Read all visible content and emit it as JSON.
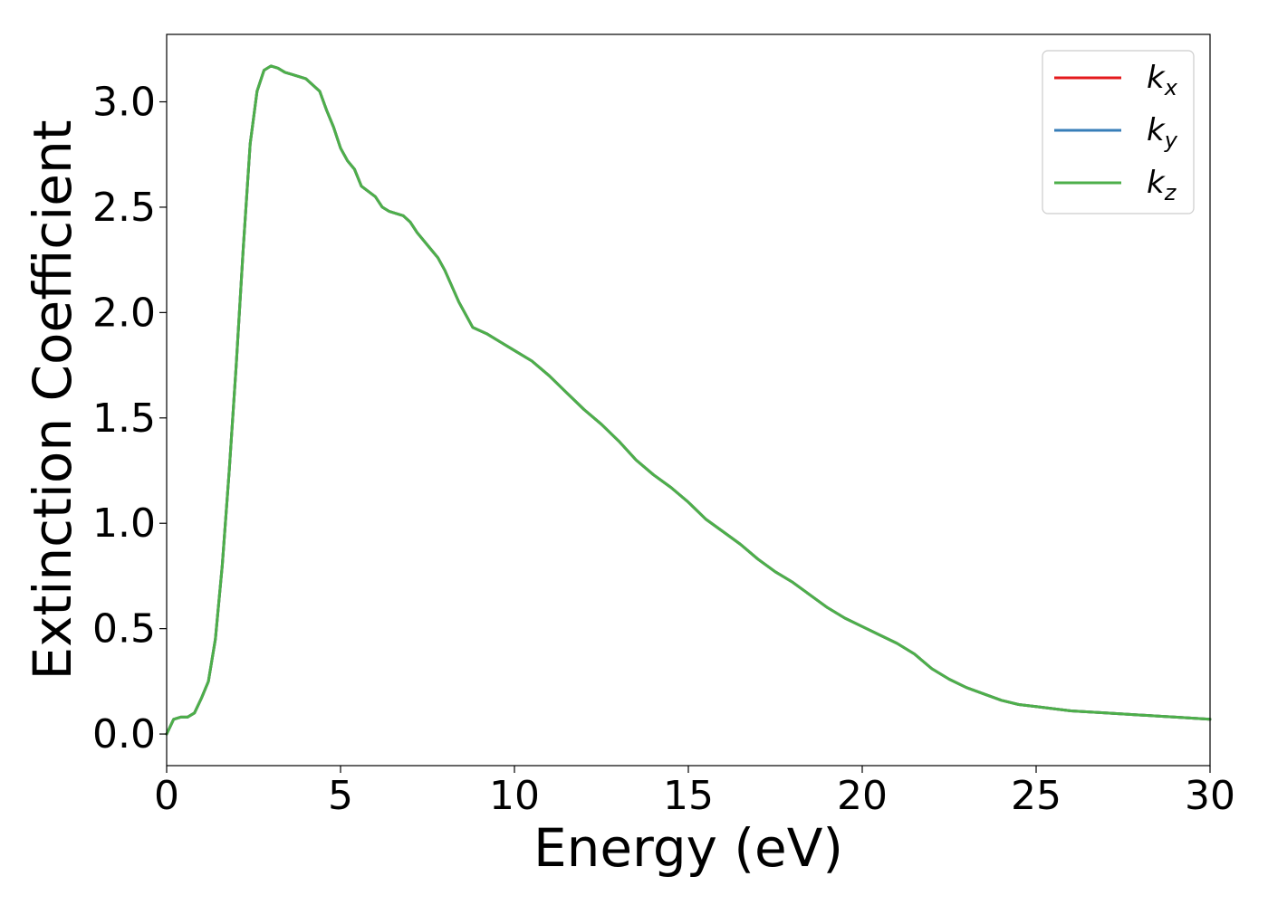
{
  "chart_data": {
    "type": "line",
    "title": "",
    "xlabel": "Energy (eV)",
    "ylabel": "Extinction Coefficient",
    "xlim": [
      0,
      30
    ],
    "ylim": [
      -0.15,
      3.32
    ],
    "xticks": [
      0,
      5,
      10,
      15,
      20,
      25,
      30
    ],
    "xtick_labels": [
      "0",
      "5",
      "10",
      "15",
      "20",
      "25",
      "30"
    ],
    "yticks": [
      0.0,
      0.5,
      1.0,
      1.5,
      2.0,
      2.5,
      3.0
    ],
    "ytick_labels": [
      "0.0",
      "0.5",
      "1.0",
      "1.5",
      "2.0",
      "2.5",
      "3.0"
    ],
    "grid": false,
    "legend_position": "top-right",
    "x": [
      0,
      0.2,
      0.4,
      0.6,
      0.8,
      1.0,
      1.2,
      1.4,
      1.6,
      1.8,
      2.0,
      2.2,
      2.4,
      2.6,
      2.8,
      3.0,
      3.2,
      3.4,
      3.6,
      3.8,
      4.0,
      4.4,
      4.6,
      4.8,
      5.0,
      5.2,
      5.4,
      5.6,
      6.0,
      6.2,
      6.4,
      6.6,
      6.8,
      7.0,
      7.2,
      7.6,
      7.8,
      8.0,
      8.4,
      8.8,
      9.2,
      9.6,
      10.0,
      10.5,
      11.0,
      11.5,
      12.0,
      12.5,
      13.0,
      13.5,
      14.0,
      14.5,
      15.0,
      15.5,
      16.0,
      16.5,
      17.0,
      17.5,
      18.0,
      18.5,
      19.0,
      19.5,
      20.0,
      20.5,
      21.0,
      21.5,
      22.0,
      22.5,
      23.0,
      23.5,
      24.0,
      24.5,
      25.0,
      25.5,
      26.0,
      27.0,
      28.0,
      29.0,
      30.0
    ],
    "series": [
      {
        "name": "x",
        "color": "#e41a1c",
        "values": [
          0.0,
          0.07,
          0.08,
          0.08,
          0.1,
          0.17,
          0.25,
          0.45,
          0.8,
          1.25,
          1.75,
          2.3,
          2.8,
          3.05,
          3.15,
          3.17,
          3.16,
          3.14,
          3.13,
          3.12,
          3.11,
          3.05,
          2.96,
          2.88,
          2.78,
          2.72,
          2.68,
          2.6,
          2.55,
          2.5,
          2.48,
          2.47,
          2.46,
          2.43,
          2.38,
          2.3,
          2.26,
          2.2,
          2.05,
          1.93,
          1.9,
          1.86,
          1.82,
          1.77,
          1.7,
          1.62,
          1.54,
          1.47,
          1.39,
          1.3,
          1.23,
          1.17,
          1.1,
          1.02,
          0.96,
          0.9,
          0.83,
          0.77,
          0.72,
          0.66,
          0.6,
          0.55,
          0.51,
          0.47,
          0.43,
          0.38,
          0.31,
          0.26,
          0.22,
          0.19,
          0.16,
          0.14,
          0.13,
          0.12,
          0.11,
          0.1,
          0.09,
          0.08,
          0.07
        ]
      },
      {
        "name": "y",
        "color": "#377eb8",
        "values": [
          0.0,
          0.07,
          0.08,
          0.08,
          0.1,
          0.17,
          0.25,
          0.45,
          0.8,
          1.25,
          1.75,
          2.3,
          2.8,
          3.05,
          3.15,
          3.17,
          3.16,
          3.14,
          3.13,
          3.12,
          3.11,
          3.05,
          2.96,
          2.88,
          2.78,
          2.72,
          2.68,
          2.6,
          2.55,
          2.5,
          2.48,
          2.47,
          2.46,
          2.43,
          2.38,
          2.3,
          2.26,
          2.2,
          2.05,
          1.93,
          1.9,
          1.86,
          1.82,
          1.77,
          1.7,
          1.62,
          1.54,
          1.47,
          1.39,
          1.3,
          1.23,
          1.17,
          1.1,
          1.02,
          0.96,
          0.9,
          0.83,
          0.77,
          0.72,
          0.66,
          0.6,
          0.55,
          0.51,
          0.47,
          0.43,
          0.38,
          0.31,
          0.26,
          0.22,
          0.19,
          0.16,
          0.14,
          0.13,
          0.12,
          0.11,
          0.1,
          0.09,
          0.08,
          0.07
        ]
      },
      {
        "name": "z",
        "color": "#4daf4a",
        "values": [
          0.0,
          0.07,
          0.08,
          0.08,
          0.1,
          0.17,
          0.25,
          0.45,
          0.8,
          1.25,
          1.75,
          2.3,
          2.8,
          3.05,
          3.15,
          3.17,
          3.16,
          3.14,
          3.13,
          3.12,
          3.11,
          3.05,
          2.96,
          2.88,
          2.78,
          2.72,
          2.68,
          2.6,
          2.55,
          2.5,
          2.48,
          2.47,
          2.46,
          2.43,
          2.38,
          2.3,
          2.26,
          2.2,
          2.05,
          1.93,
          1.9,
          1.86,
          1.82,
          1.77,
          1.7,
          1.62,
          1.54,
          1.47,
          1.39,
          1.3,
          1.23,
          1.17,
          1.1,
          1.02,
          0.96,
          0.9,
          0.83,
          0.77,
          0.72,
          0.66,
          0.6,
          0.55,
          0.51,
          0.47,
          0.43,
          0.38,
          0.31,
          0.26,
          0.22,
          0.19,
          0.16,
          0.14,
          0.13,
          0.12,
          0.11,
          0.1,
          0.09,
          0.08,
          0.07
        ]
      }
    ],
    "legend": [
      {
        "main": "k",
        "sub": "x"
      },
      {
        "main": "k",
        "sub": "y"
      },
      {
        "main": "k",
        "sub": "z"
      }
    ]
  }
}
